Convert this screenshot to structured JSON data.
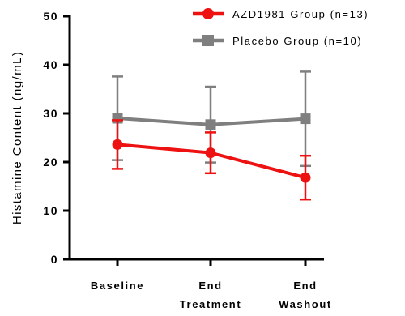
{
  "chart_data": {
    "type": "line",
    "title": "",
    "xlabel": "",
    "ylabel": "Histamine Content (ng/mL)",
    "ylim": [
      0,
      50
    ],
    "yticks": [
      "0",
      "10",
      "20",
      "30",
      "40",
      "50"
    ],
    "categories": [
      [
        "Baseline"
      ],
      [
        "End",
        "Treatment"
      ],
      [
        "End",
        "Washout"
      ]
    ],
    "legend_position": "top-right",
    "grid": false,
    "series": [
      {
        "name": "AZD1981 Group (n=13)",
        "color": "#ee1111",
        "marker": "circle",
        "values": [
          23.6,
          21.9,
          16.8
        ],
        "error": [
          5.0,
          4.2,
          4.5
        ]
      },
      {
        "name": "Placebo Group (n=10)",
        "color": "#7f7f7f",
        "marker": "square",
        "values": [
          29.0,
          27.7,
          28.9
        ],
        "error": [
          8.6,
          7.8,
          9.7
        ]
      }
    ]
  }
}
